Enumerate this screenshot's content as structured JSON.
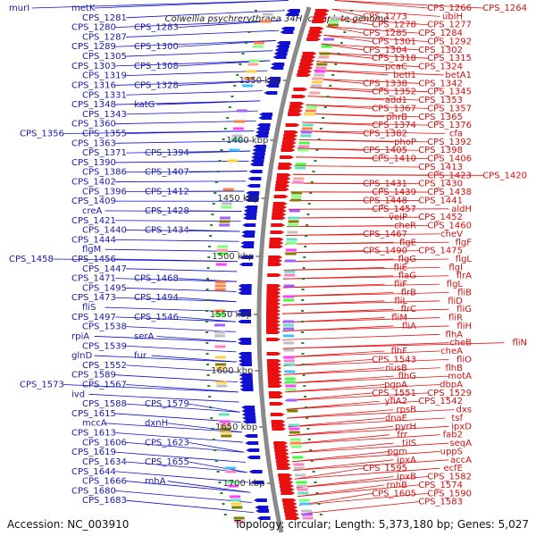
{
  "title": "Colwellia psychrerythraea 34H, complete genome",
  "footer": {
    "accession": "Accession: NC_003910",
    "summary": "Topology: circular; Length: 5,373,180 bp; Genes: 5,027"
  },
  "kbp_marks": [
    "1350 kbp",
    "1400 kbp",
    "1450 kbp",
    "1500 kbp",
    "1550 kbp",
    "1600 kbp",
    "1650 kbp",
    "1700 kbp"
  ],
  "colors": {
    "forward": "#e81010",
    "reverse": "#1010d0",
    "backbone": "#8a8a8a",
    "tick": "#1a8a1a"
  },
  "labels_left": [
    "murI",
    "metK",
    "CPS_1281",
    "CPS_1280",
    "CPS_1283",
    "CPS_1287",
    "CPS_1289",
    "CPS_1300",
    "CPS_1305",
    "CPS_1303",
    "CPS_1308",
    "CPS_1319",
    "CPS_1316",
    "CPS_1328",
    "CPS_1331",
    "CPS_1348",
    "katG",
    "CPS_1343",
    "CPS_1360",
    "CPS_1356",
    "CPS_1355",
    "CPS_1363",
    "CPS_1371",
    "CPS_1394",
    "CPS_1390",
    "CPS_1386",
    "CPS_1407",
    "CPS_1402",
    "CPS_1396",
    "CPS_1412",
    "CPS_1409",
    "creA",
    "CPS_1428",
    "CPS_1421",
    "CPS_1440",
    "CPS_1434",
    "CPS_1444",
    "flgM",
    "CPS_1458",
    "CPS_1456",
    "CPS_1447",
    "CPS_1471",
    "CPS_1468",
    "CPS_1495",
    "CPS_1473",
    "CPS_1494",
    "fliS",
    "CPS_1497",
    "CPS_1546",
    "CPS_1538",
    "rpiA",
    "serA",
    "CPS_1539",
    "glnD",
    "fur",
    "CPS_1552",
    "CPS_1589",
    "CPS_1573",
    "CPS_1567",
    "ivd",
    "CPS_1588",
    "CPS_1579",
    "CPS_1615",
    "mccA",
    "dxnH",
    "CPS_1613",
    "CPS_1606",
    "CPS_1623",
    "CPS_1619",
    "CPS_1634",
    "CPS_1655",
    "CPS_1644",
    "CPS_1666",
    "rnhA",
    "CPS_1680",
    "CPS_1683"
  ],
  "labels_right": [
    "CPS_1264",
    "CPS_1266",
    "ubiH",
    "CPS_1273",
    "CPS_1277",
    "CPS_1278",
    "CPS_1284",
    "CPS_1285",
    "CPS_1292",
    "CPS_1301",
    "CPS_1302",
    "CPS_1304",
    "CPS_1315",
    "CPS_1318",
    "CPS_1324",
    "pcaC",
    "betA1",
    "betI1",
    "CPS_1342",
    "CPS_1338",
    "CPS_1345",
    "CPS_1352",
    "CPS_1353",
    "add1",
    "CPS_1357",
    "CPS_1367",
    "CPS_1365",
    "phrB",
    "CPS_1376",
    "CPS_1374",
    "cfa",
    "CPS_1382",
    "CPS_1392",
    "phoP",
    "CPS_1398",
    "CPS_1405",
    "CPS_1406",
    "CPS_1410",
    "CPS_1413",
    "CPS_1420",
    "CPS_1423",
    "CPS_1430",
    "CPS_1431",
    "CPS_1438",
    "CPS_1439",
    "CPS_1441",
    "CPS_1448",
    "aldH",
    "CPS_1457",
    "CPS_1452",
    "veiP",
    "CPS_1460",
    "cheR",
    "cheV",
    "CPS_1467",
    "flgF",
    "flgE",
    "CPS_1475",
    "CPS_1490",
    "flgL",
    "flgG",
    "flgI",
    "fliE",
    "flrA",
    "flaG",
    "flgL",
    "fliF",
    "fliB",
    "flrB",
    "fliD",
    "fliL",
    "fliG",
    "flrC",
    "fliR",
    "fliM",
    "fliH",
    "fliA",
    "flhA",
    "fliN",
    "cheB",
    "cheA",
    "flhF",
    "fliO",
    "CPS_1543",
    "flhB",
    "nusB",
    "motA",
    "flhG",
    "dbpA",
    "pgpA",
    "CPS_1529",
    "CPS_1551",
    "CPS_1542",
    "yfiA2",
    "dxs",
    "rpsB",
    "tsf",
    "dnaE",
    "ipxD",
    "pyrH",
    "fab2",
    "frr",
    "seqA",
    "tilS",
    "uppS",
    "pgm",
    "accA",
    "ipxA",
    "ecfE",
    "CPS_1595",
    "CPS_1582",
    "ipxB",
    "CPS_1574",
    "rnhB",
    "CPS_1590",
    "CPS_1605",
    "CPS_1583"
  ]
}
